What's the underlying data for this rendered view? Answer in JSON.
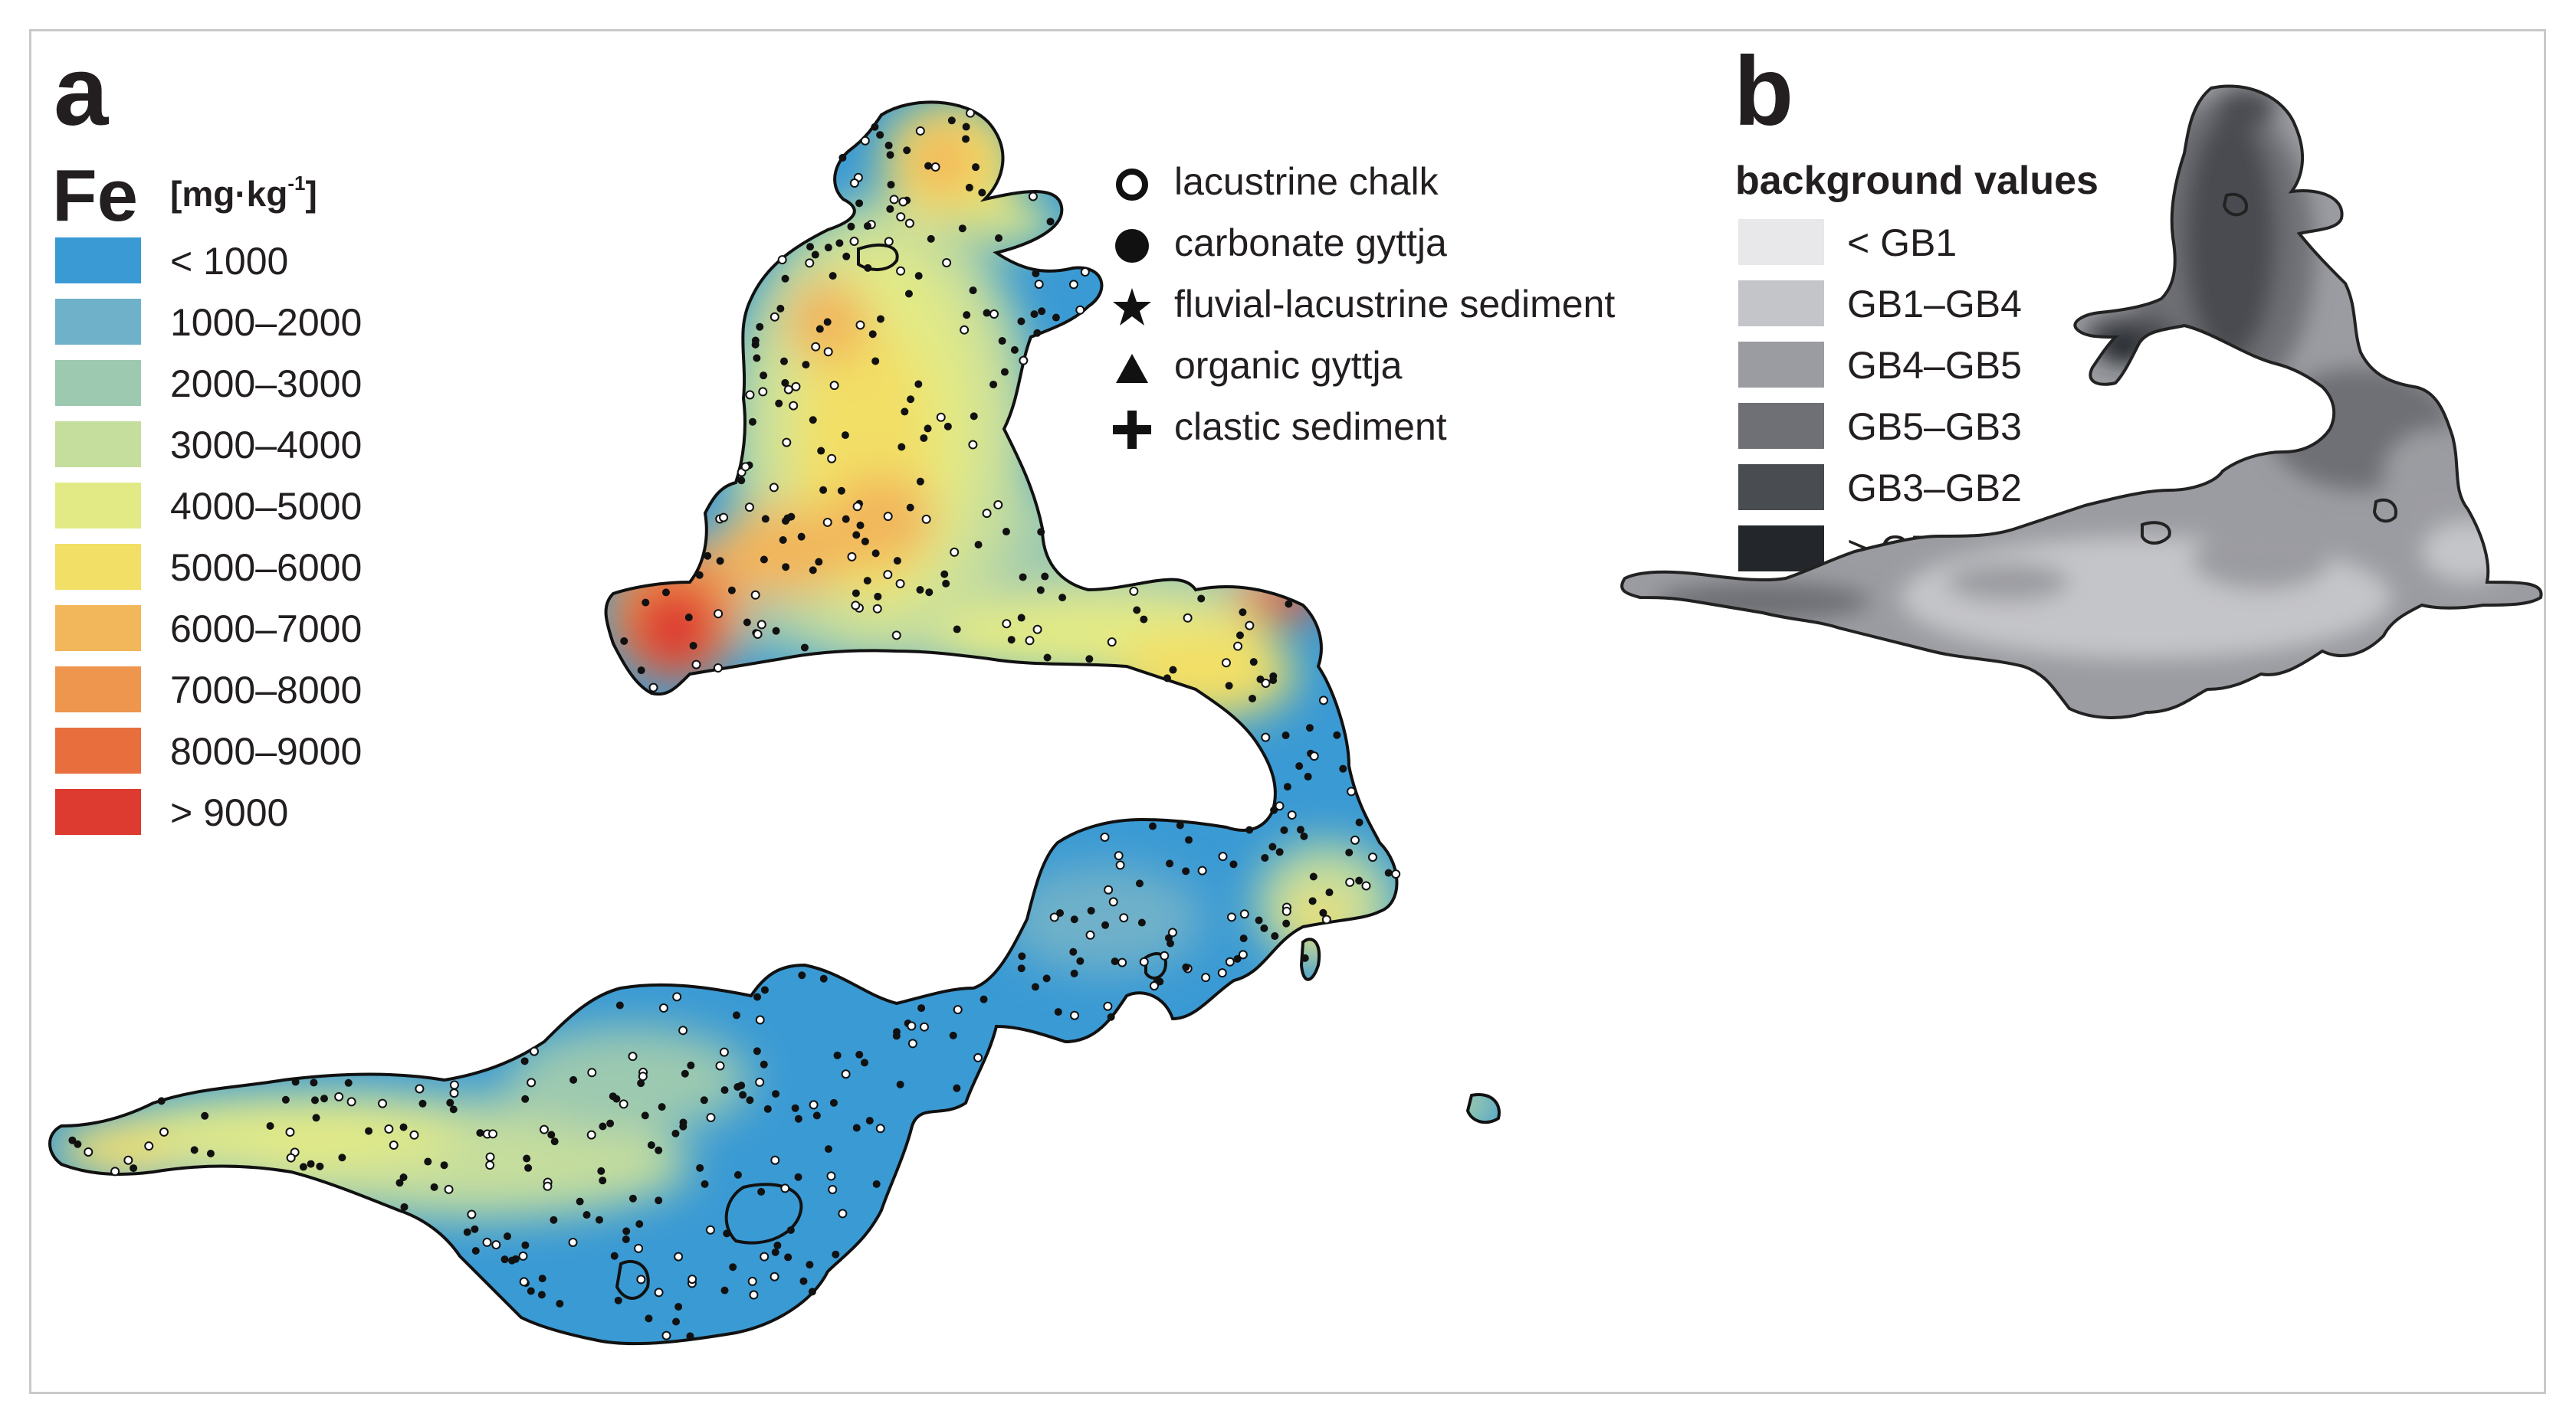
{
  "panel_a": {
    "letter": "a",
    "element": "Fe",
    "unit_text": "[mg·kg",
    "unit_exp": "-1",
    "unit_close": "]",
    "classes": [
      {
        "label": "< 1000",
        "color": "#3a9ad4"
      },
      {
        "label": "1000–2000",
        "color": "#6fb1c9"
      },
      {
        "label": "2000–3000",
        "color": "#9cc9b0"
      },
      {
        "label": "3000–4000",
        "color": "#c5dd9d"
      },
      {
        "label": "4000–5000",
        "color": "#e2ea86"
      },
      {
        "label": "5000–6000",
        "color": "#f2df66"
      },
      {
        "label": "6000–7000",
        "color": "#f2b65b"
      },
      {
        "label": "7000–8000",
        "color": "#ee954e"
      },
      {
        "label": "8000–9000",
        "color": "#e86e3e"
      },
      {
        "label": "> 9000",
        "color": "#dd3a30"
      }
    ],
    "sample_types": [
      {
        "label": "lacustrine chalk",
        "symbol": "open-circle"
      },
      {
        "label": "carbonate gyttja",
        "symbol": "filled-circle"
      },
      {
        "label": "fluvial-lacustrine sediment",
        "symbol": "star"
      },
      {
        "label": "organic gyttja",
        "symbol": "triangle"
      },
      {
        "label": "clastic sediment",
        "symbol": "plus"
      }
    ]
  },
  "panel_b": {
    "letter": "b",
    "title": "background values",
    "classes": [
      {
        "label": "< GB1",
        "color": "#e8e8ea"
      },
      {
        "label": "GB1–GB4",
        "color": "#c4c5c9"
      },
      {
        "label": "GB4–GB5",
        "color": "#9b9ca1"
      },
      {
        "label": "GB5–GB3",
        "color": "#6e7075"
      },
      {
        "label": "GB3–GB2",
        "color": "#494c51"
      },
      {
        "label": "> GB2",
        "color": "#23272b"
      }
    ]
  }
}
